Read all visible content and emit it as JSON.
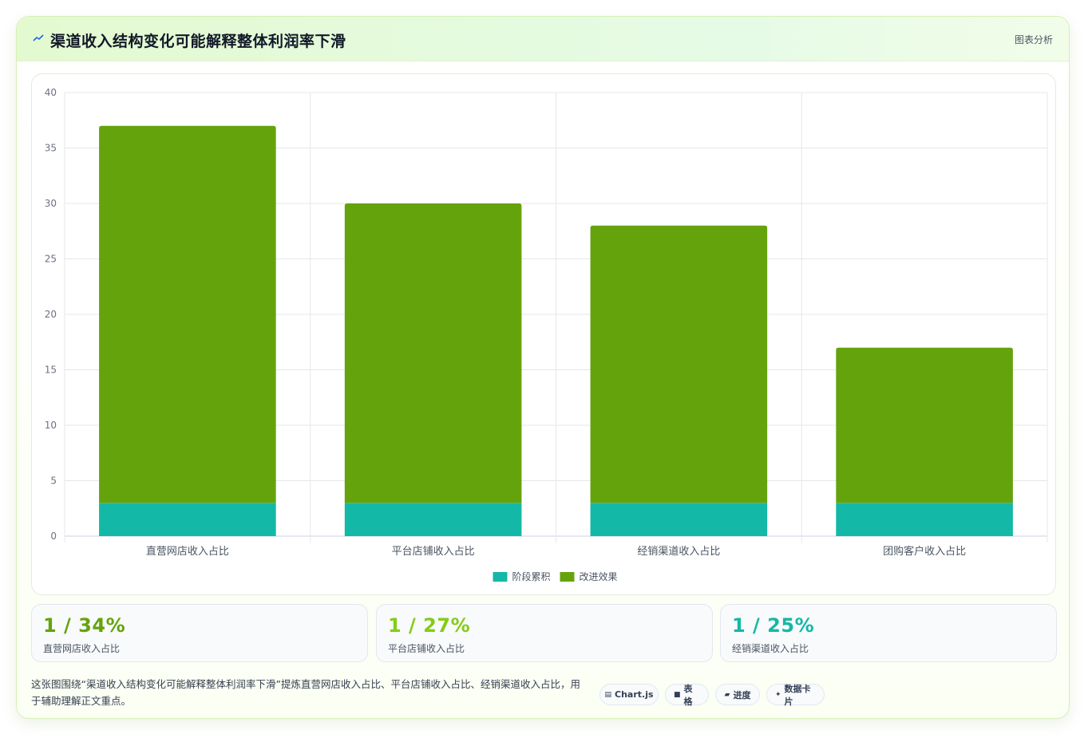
{
  "header": {
    "title": "渠道收入结构变化可能解释整体利润率下滑",
    "title_icon": "sparkline-icon",
    "link_label": "图表分析"
  },
  "chart_data": {
    "type": "bar",
    "stacked": true,
    "categories": [
      "直营网店收入占比",
      "平台店铺收入占比",
      "经销渠道收入占比",
      "团购客户收入占比"
    ],
    "series": [
      {
        "name": "阶段累积",
        "values": [
          3,
          3,
          3,
          3
        ],
        "color": "#14b8a6"
      },
      {
        "name": "改进效果",
        "values": [
          34,
          27,
          25,
          14
        ],
        "color": "#65a30d"
      }
    ],
    "ylim": [
      0,
      40
    ],
    "yticks": [
      0,
      5,
      10,
      15,
      20,
      25,
      30,
      35,
      40
    ],
    "grid": true,
    "legend": "bottom"
  },
  "stats": [
    {
      "value": "1 / 34%",
      "label": "直营网店收入占比",
      "color": "#65a30d"
    },
    {
      "value": "1 / 27%",
      "label": "平台店铺收入占比",
      "color": "#84cc16"
    },
    {
      "value": "1 / 25%",
      "label": "经销渠道收入占比",
      "color": "#14b8a6"
    }
  ],
  "footnote": "这张图围绕“渠道收入结构变化可能解释整体利润率下滑”提炼直营网店收入占比、平台店铺收入占比、经销渠道收入占比，用于辅助理解正文重点。",
  "chips": [
    {
      "icon": "▤",
      "label": "Chart.js"
    },
    {
      "icon": "■",
      "label": "表格"
    },
    {
      "icon": "▰",
      "label": "进度"
    },
    {
      "icon": "✦",
      "label": "数据卡片"
    }
  ]
}
